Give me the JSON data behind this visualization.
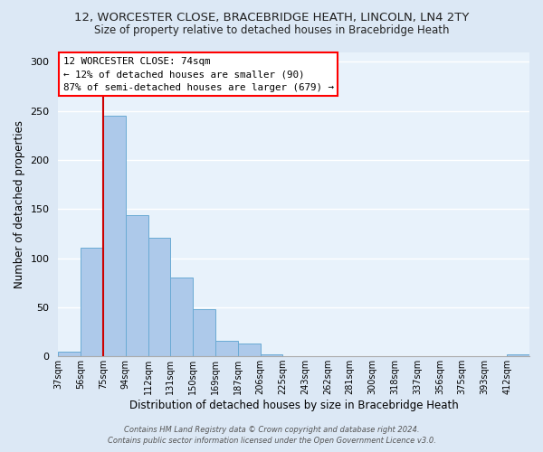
{
  "title_line1": "12, WORCESTER CLOSE, BRACEBRIDGE HEATH, LINCOLN, LN4 2TY",
  "title_line2": "Size of property relative to detached houses in Bracebridge Heath",
  "xlabel": "Distribution of detached houses by size in Bracebridge Heath",
  "ylabel": "Number of detached properties",
  "bar_labels": [
    "37sqm",
    "56sqm",
    "75sqm",
    "94sqm",
    "112sqm",
    "131sqm",
    "150sqm",
    "169sqm",
    "187sqm",
    "206sqm",
    "225sqm",
    "243sqm",
    "262sqm",
    "281sqm",
    "300sqm",
    "318sqm",
    "337sqm",
    "356sqm",
    "375sqm",
    "393sqm",
    "412sqm"
  ],
  "bar_heights": [
    5,
    111,
    245,
    144,
    121,
    80,
    48,
    16,
    13,
    2,
    0,
    0,
    0,
    0,
    0,
    0,
    0,
    0,
    0,
    0,
    2
  ],
  "bar_color": "#adc9ea",
  "bar_edge_color": "#6aaad4",
  "marker_color": "#cc0000",
  "ylim": [
    0,
    310
  ],
  "yticks": [
    0,
    50,
    100,
    150,
    200,
    250,
    300
  ],
  "annotation_text_line1": "12 WORCESTER CLOSE: 74sqm",
  "annotation_text_line2": "← 12% of detached houses are smaller (90)",
  "annotation_text_line3": "87% of semi-detached houses are larger (679) →",
  "footer_line1": "Contains HM Land Registry data © Crown copyright and database right 2024.",
  "footer_line2": "Contains public sector information licensed under the Open Government Licence v3.0.",
  "bg_color": "#dce8f5",
  "plot_bg_color": "#e8f2fb",
  "grid_color": "#ffffff"
}
